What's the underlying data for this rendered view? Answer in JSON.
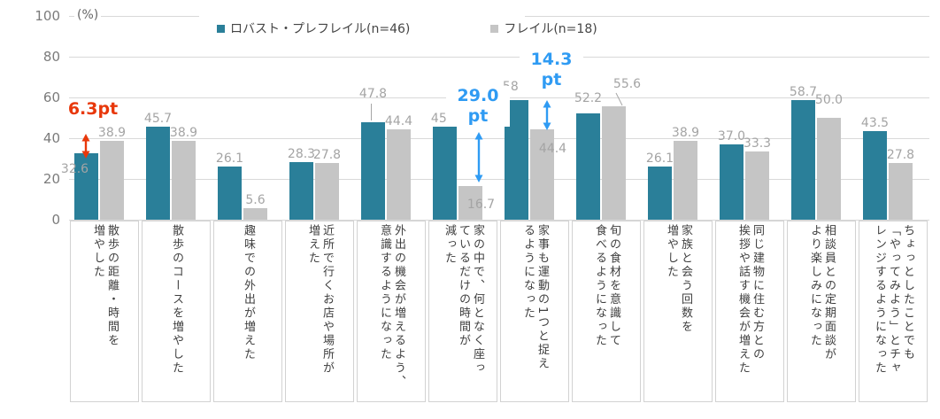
{
  "chart_data": {
    "type": "bar",
    "title": "",
    "unit": "(%)",
    "ylim": [
      0,
      100
    ],
    "yticks": [
      0,
      20,
      40,
      60,
      80,
      100
    ],
    "grid": true,
    "legend_position": "top",
    "categories": [
      "散歩の距離・時間を増やした",
      "散歩のコースを増やした",
      "趣味での外出が増えた",
      "近所で行くお店や場所が増えた",
      "外出の機会が増えるよう、意識するようになった",
      "家の中で、何となく座っているだけの時間が減った",
      "家事も運動の1つと捉えるようになった",
      "旬の食材を意識して食べるようになった",
      "家族と会う回数を増やした",
      "同じ建物に住む方との挨拶や話す機会が増えた",
      "相談員との定期面談がより楽しみになった",
      "ちょっとしたことでも「やってみよう」とチャレンジするようになった"
    ],
    "category_lines": [
      [
        "散歩の距離・時間を",
        "増やした"
      ],
      [
        "散歩のコースを増やした"
      ],
      [
        "趣味での外出が増えた"
      ],
      [
        "近所で行くお店や場所が",
        "増えた"
      ],
      [
        "外出の機会が増えるよう、",
        "意識するようになった"
      ],
      [
        "家の中で、何となく座っ",
        "ているだけの時間が",
        "減った"
      ],
      [
        "家事も運動の1つと捉え",
        "るようになった"
      ],
      [
        "旬の食材を意識して",
        "食べるようになった"
      ],
      [
        "家族と会う回数を",
        "増やした"
      ],
      [
        "同じ建物に住む方との",
        "挨拶や話す機会が増えた"
      ],
      [
        "相談員との定期面談が",
        "より楽しみになった"
      ],
      [
        "ちょっとしたことでも",
        "「やってみよう」とチャ",
        "レンジするようになった"
      ]
    ],
    "series": [
      {
        "name": "ロバスト・プレフレイル(n=46)",
        "color": "#2a7f99",
        "values": [
          32.6,
          45.7,
          26.1,
          28.3,
          47.8,
          45.7,
          58.7,
          52.2,
          26.1,
          37.0,
          58.7,
          43.5
        ],
        "labels": [
          "32.6",
          "45.7",
          "26.1",
          "28.3",
          "47.8",
          "45.7",
          "58.7",
          "52.2",
          "26.1",
          "37.0",
          "58.7",
          "43.5"
        ]
      },
      {
        "name": "フレイル(n=18)",
        "color": "#c5c5c5",
        "values": [
          38.9,
          38.9,
          5.6,
          27.8,
          44.4,
          16.7,
          44.4,
          55.6,
          38.9,
          33.3,
          50.0,
          27.8
        ],
        "labels": [
          "38.9",
          "38.9",
          "5.6",
          "27.8",
          "44.4",
          "16.7",
          "44.4",
          "55.6",
          "38.9",
          "33.3",
          "50.0",
          "27.8"
        ]
      }
    ],
    "annotations": [
      {
        "lines": [
          "6.3pt"
        ],
        "color": "#e8380b",
        "category_index": 0,
        "diff_between": [
          32.6,
          38.9
        ]
      },
      {
        "lines": [
          "29.0",
          "pt"
        ],
        "color": "#2f9bf3",
        "category_index": 5,
        "diff_between": [
          45.7,
          16.7
        ]
      },
      {
        "lines": [
          "14.3",
          "pt"
        ],
        "color": "#2f9bf3",
        "category_index": 6,
        "diff_between": [
          58.7,
          44.4
        ]
      }
    ]
  },
  "colors": {
    "gridline": "#d9d9d9",
    "axis_text": "#7b7b7b",
    "data_label": "#a4a4a4",
    "category_text": "#3f3f3f",
    "category_border": "#d2d2d2",
    "series_teal": "#2a7f99",
    "series_gray": "#c5c5c5",
    "annotation_red": "#e8380b",
    "annotation_blue": "#2f9bf3"
  }
}
